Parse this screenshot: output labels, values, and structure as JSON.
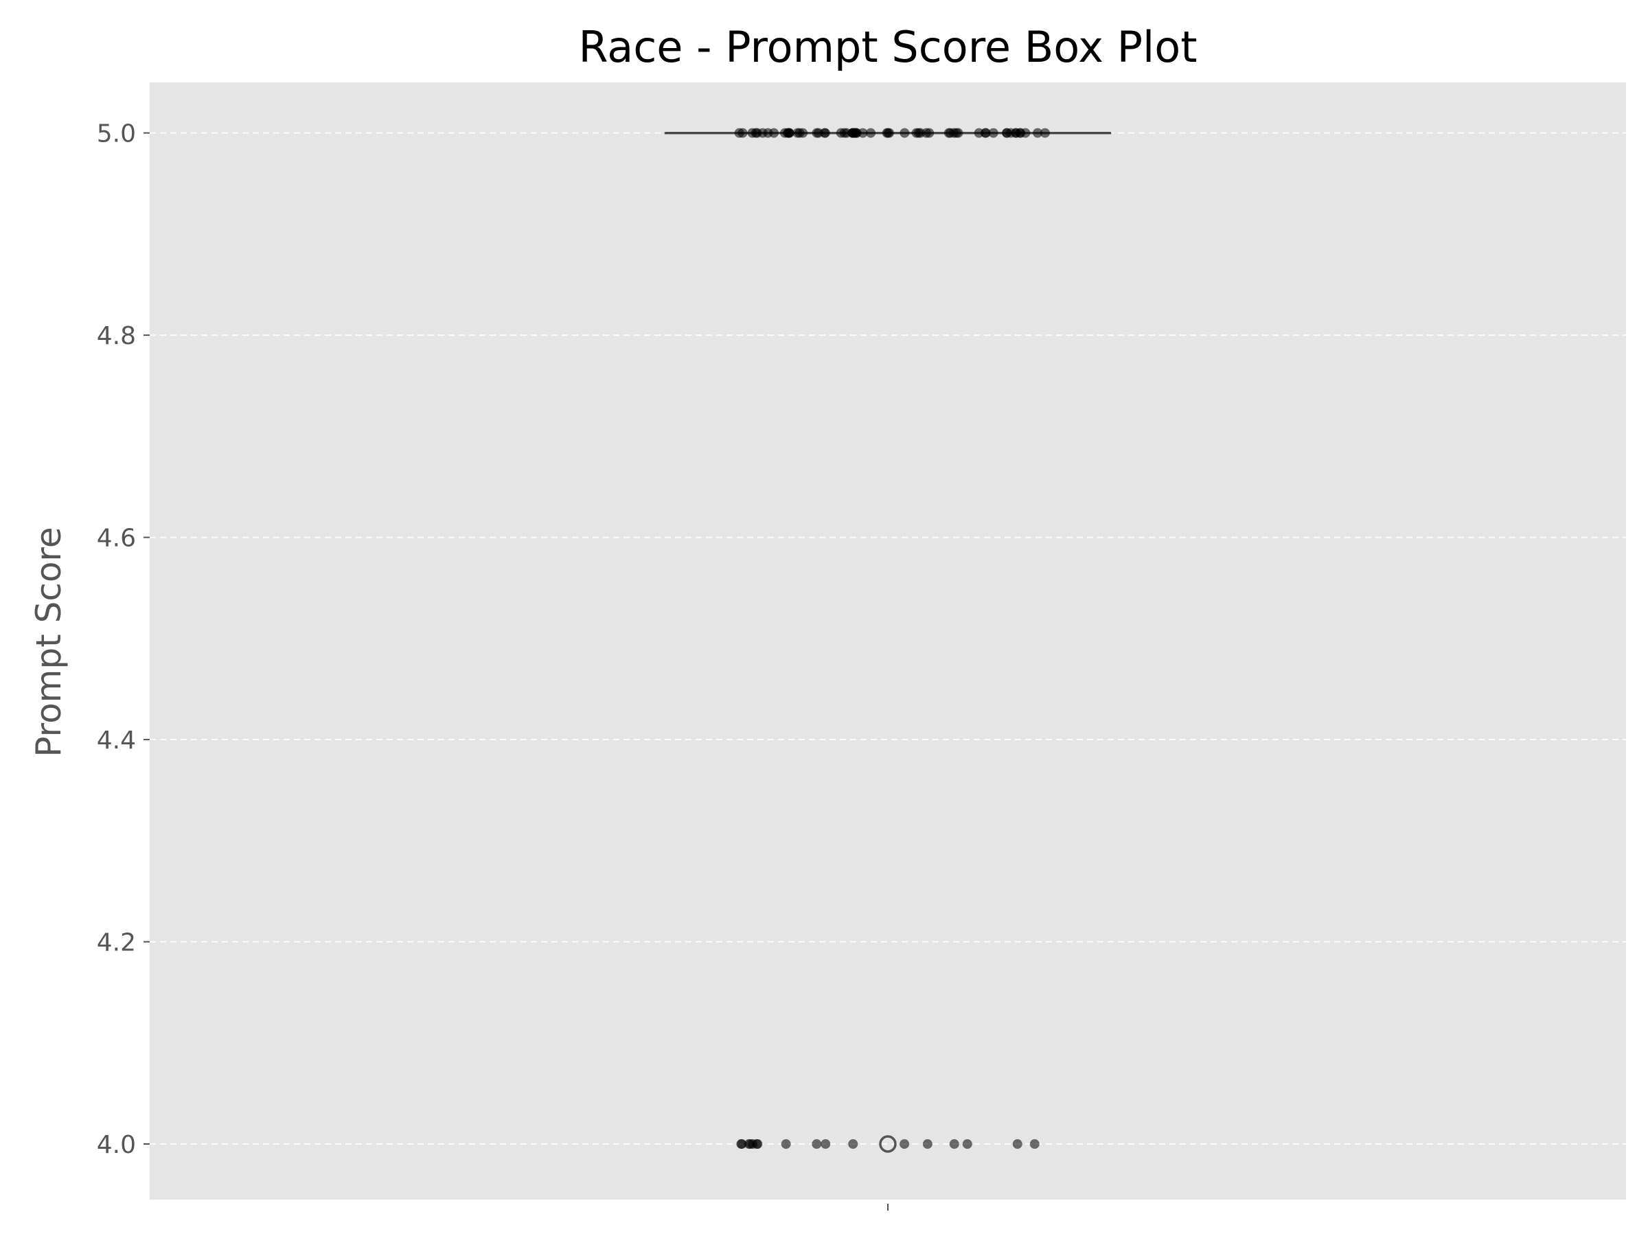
{
  "chart_data": {
    "type": "box",
    "title": "Race - Prompt Score Box Plot",
    "xlabel": "",
    "ylabel": "Prompt Score",
    "ylim": [
      3.945,
      5.05
    ],
    "yticks": [
      4.0,
      4.2,
      4.4,
      4.6,
      4.8,
      5.0
    ],
    "ytick_labels": [
      "4.0",
      "4.2",
      "4.4",
      "4.6",
      "4.8",
      "5.0"
    ],
    "xticks": [
      ""
    ],
    "grid": "y-dashed",
    "background_color": "#e5e5e5",
    "point_color": "#000000",
    "box": {
      "median": 5.0,
      "q1": 5.0,
      "q3": 5.0,
      "whisker_low": 5.0,
      "whisker_high": 5.0,
      "outliers": [
        4.0
      ]
    },
    "points_5": [
      5.0,
      5.0,
      5.0,
      5.0,
      5.0,
      5.0,
      5.0,
      5.0,
      5.0,
      5.0,
      5.0,
      5.0,
      5.0,
      5.0,
      5.0,
      5.0,
      5.0,
      5.0,
      5.0,
      5.0,
      5.0,
      5.0,
      5.0,
      5.0,
      5.0,
      5.0,
      5.0,
      5.0,
      5.0,
      5.0,
      5.0,
      5.0,
      5.0,
      5.0,
      5.0,
      5.0,
      5.0,
      5.0,
      5.0,
      5.0,
      5.0,
      5.0,
      5.0,
      5.0,
      5.0,
      5.0,
      5.0,
      5.0,
      5.0,
      5.0,
      5.0,
      5.0,
      5.0,
      5.0,
      5.0,
      5.0,
      5.0,
      5.0,
      5.0,
      5.0
    ],
    "points_4": [
      4.0,
      4.0,
      4.0,
      4.0,
      4.0,
      4.0,
      4.0,
      4.0,
      4.0,
      4.0,
      4.0,
      4.0,
      4.0,
      4.0,
      4.0,
      4.0,
      4.0
    ]
  }
}
